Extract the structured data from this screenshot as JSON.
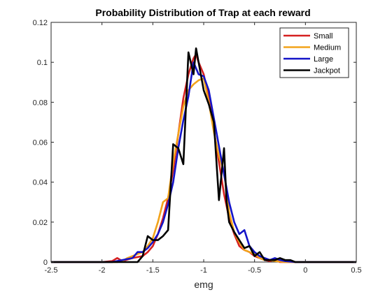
{
  "chart_data": {
    "type": "line",
    "title": "Probability Distribution of Trap at each reward",
    "xlabel": "emg",
    "ylabel": "",
    "xlim": [
      -2.5,
      0.5
    ],
    "ylim": [
      0,
      0.12
    ],
    "xticks": [
      -2.5,
      -2,
      -1.5,
      -1,
      -0.5,
      0,
      0.5
    ],
    "xtick_labels": [
      "-2.5",
      "-2",
      "-1.5",
      "-1",
      "-0.5",
      "0",
      "0.5"
    ],
    "yticks": [
      0,
      0.02,
      0.04,
      0.06,
      0.08,
      0.1,
      0.12
    ],
    "ytick_labels": [
      "0",
      "0.02",
      "0.04",
      "0.06",
      "0.08",
      "0.1",
      "0.12"
    ],
    "grid": false,
    "legend_position": "top-right",
    "series": [
      {
        "name": "Small",
        "color": "#d62020",
        "x": [
          -2.5,
          -2.0,
          -1.9,
          -1.85,
          -1.8,
          -1.7,
          -1.6,
          -1.55,
          -1.5,
          -1.45,
          -1.4,
          -1.35,
          -1.3,
          -1.25,
          -1.2,
          -1.15,
          -1.1,
          -1.075,
          -1.05,
          -1.0,
          -0.95,
          -0.9,
          -0.85,
          -0.8,
          -0.75,
          -0.7,
          -0.65,
          -0.6,
          -0.55,
          -0.5,
          -0.45,
          -0.4,
          -0.35,
          -0.3,
          -0.25,
          -0.2,
          -0.1,
          0.0,
          0.5
        ],
        "y": [
          0,
          0,
          0.0005,
          0.002,
          0.0005,
          0.002,
          0.003,
          0.005,
          0.008,
          0.014,
          0.022,
          0.032,
          0.046,
          0.064,
          0.082,
          0.094,
          0.102,
          0.104,
          0.1,
          0.094,
          0.082,
          0.066,
          0.05,
          0.034,
          0.022,
          0.014,
          0.008,
          0.006,
          0.005,
          0.003,
          0.002,
          0.001,
          0.0005,
          0.001,
          0,
          0,
          0,
          0,
          0
        ]
      },
      {
        "name": "Medium",
        "color": "#f2a31b",
        "x": [
          -2.5,
          -1.85,
          -1.8,
          -1.75,
          -1.7,
          -1.65,
          -1.6,
          -1.55,
          -1.5,
          -1.45,
          -1.4,
          -1.35,
          -1.3,
          -1.25,
          -1.2,
          -1.15,
          -1.1,
          -1.05,
          -1.0,
          -0.95,
          -0.9,
          -0.85,
          -0.8,
          -0.75,
          -0.7,
          -0.65,
          -0.6,
          -0.55,
          -0.5,
          -0.45,
          -0.4,
          -0.35,
          -0.3,
          -0.2,
          -0.1,
          0.0,
          0.5
        ],
        "y": [
          0,
          0,
          0.0005,
          0.002,
          0.003,
          0.004,
          0.005,
          0.008,
          0.012,
          0.02,
          0.03,
          0.032,
          0.05,
          0.064,
          0.078,
          0.086,
          0.089,
          0.091,
          0.092,
          0.08,
          0.065,
          0.053,
          0.045,
          0.025,
          0.015,
          0.01,
          0.006,
          0.005,
          0.004,
          0.002,
          0.001,
          0.001,
          0.0005,
          0,
          0,
          0,
          0
        ]
      },
      {
        "name": "Large",
        "color": "#1414c8",
        "x": [
          -2.5,
          -1.9,
          -1.85,
          -1.8,
          -1.7,
          -1.65,
          -1.6,
          -1.55,
          -1.5,
          -1.45,
          -1.4,
          -1.35,
          -1.3,
          -1.25,
          -1.2,
          -1.15,
          -1.1,
          -1.05,
          -1.0,
          -0.95,
          -0.9,
          -0.85,
          -0.8,
          -0.75,
          -0.7,
          -0.65,
          -0.6,
          -0.55,
          -0.5,
          -0.45,
          -0.4,
          -0.35,
          -0.3,
          -0.25,
          -0.2,
          -0.1,
          0.0,
          0.5
        ],
        "y": [
          0,
          0,
          0.0005,
          0.001,
          0.002,
          0.005,
          0.005,
          0.007,
          0.01,
          0.014,
          0.02,
          0.029,
          0.04,
          0.057,
          0.071,
          0.083,
          0.1,
          0.094,
          0.093,
          0.086,
          0.072,
          0.058,
          0.044,
          0.03,
          0.02,
          0.014,
          0.016,
          0.008,
          0.005,
          0.003,
          0.002,
          0.001,
          0.002,
          0.001,
          0.0005,
          0,
          0,
          0
        ]
      },
      {
        "name": "Jackpot",
        "color": "#000000",
        "x": [
          -2.5,
          -1.7,
          -1.65,
          -1.6,
          -1.55,
          -1.5,
          -1.45,
          -1.4,
          -1.35,
          -1.3,
          -1.25,
          -1.2,
          -1.15,
          -1.1,
          -1.075,
          -1.05,
          -1.0,
          -0.95,
          -0.9,
          -0.85,
          -0.8,
          -0.775,
          -0.75,
          -0.7,
          -0.65,
          -0.6,
          -0.55,
          -0.5,
          -0.45,
          -0.4,
          -0.35,
          -0.3,
          -0.25,
          -0.2,
          -0.15,
          -0.1,
          0.0,
          0.5
        ],
        "y": [
          0,
          0,
          0,
          0.003,
          0.013,
          0.011,
          0.011,
          0.013,
          0.016,
          0.059,
          0.057,
          0.049,
          0.105,
          0.094,
          0.107,
          0.1,
          0.086,
          0.079,
          0.07,
          0.031,
          0.057,
          0.03,
          0.02,
          0.015,
          0.011,
          0.007,
          0.008,
          0.003,
          0.005,
          0.001,
          0.001,
          0.001,
          0.002,
          0.001,
          0.001,
          0,
          0,
          0
        ]
      }
    ]
  }
}
